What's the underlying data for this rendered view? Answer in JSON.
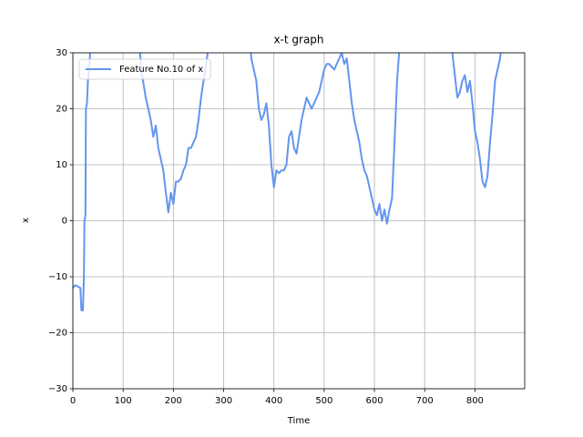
{
  "chart_data": {
    "type": "line",
    "title": "x-t graph",
    "x_label": "Time",
    "y_label": "x",
    "x": [
      0,
      5,
      15,
      17,
      20,
      22,
      23,
      25,
      26,
      28,
      30,
      33,
      35,
      40,
      130,
      136,
      145,
      150,
      155,
      160,
      165,
      170,
      175,
      180,
      185,
      190,
      195,
      200,
      205,
      210,
      215,
      220,
      225,
      230,
      235,
      240,
      245,
      250,
      255,
      260,
      265,
      270,
      275,
      350,
      355,
      360,
      365,
      370,
      375,
      380,
      385,
      390,
      395,
      400,
      405,
      410,
      415,
      420,
      425,
      430,
      435,
      440,
      445,
      450,
      455,
      460,
      465,
      470,
      475,
      480,
      490,
      500,
      505,
      510,
      520,
      530,
      535,
      540,
      545,
      550,
      555,
      560,
      565,
      570,
      575,
      580,
      585,
      590,
      595,
      600,
      605,
      610,
      615,
      620,
      625,
      630,
      635,
      640,
      645,
      650,
      655,
      750,
      755,
      760,
      765,
      770,
      775,
      780,
      785,
      790,
      795,
      800,
      805,
      810,
      815,
      820,
      825,
      830,
      835,
      840,
      845,
      850,
      855
    ],
    "series": [
      {
        "name": "Feature No.10 of x",
        "color": "#6495ed",
        "values": [
          -12,
          -11.5,
          -12,
          -16,
          -16,
          -10,
          0,
          1,
          20,
          21,
          25,
          28,
          31,
          35,
          35,
          27,
          22,
          20,
          18,
          15,
          17,
          13,
          11,
          9,
          5,
          1.5,
          5,
          3,
          7,
          7,
          7.5,
          9,
          10,
          13,
          13,
          14,
          15,
          18,
          22,
          25,
          28,
          31,
          35,
          35,
          29,
          27,
          25,
          20,
          18,
          19,
          21,
          17,
          10,
          6,
          9,
          8.5,
          9,
          9,
          10,
          15,
          16,
          13,
          12,
          15,
          18,
          20,
          22,
          21,
          20,
          21,
          23,
          27,
          28,
          28,
          27,
          29,
          30,
          28,
          29,
          25,
          21,
          18,
          16,
          14,
          11,
          9,
          8,
          6,
          4,
          2,
          1,
          3,
          0,
          2,
          -0.5,
          2,
          4,
          14,
          25,
          31,
          35,
          35,
          30,
          26,
          22,
          23,
          25,
          26,
          23,
          25,
          21,
          16,
          14,
          11,
          7,
          6,
          8,
          14,
          19,
          25,
          27,
          29,
          33
        ]
      }
    ],
    "xlim": [
      0,
      899
    ],
    "ylim": [
      -30,
      30
    ],
    "xticks": [
      0,
      100,
      200,
      300,
      400,
      500,
      600,
      700,
      800
    ],
    "yticks": [
      {
        "value": -30,
        "label": "−30"
      },
      {
        "value": -20,
        "label": "−20"
      },
      {
        "value": -10,
        "label": "−10"
      },
      0,
      10,
      20,
      30
    ],
    "grid": true,
    "legend": "upper left"
  }
}
